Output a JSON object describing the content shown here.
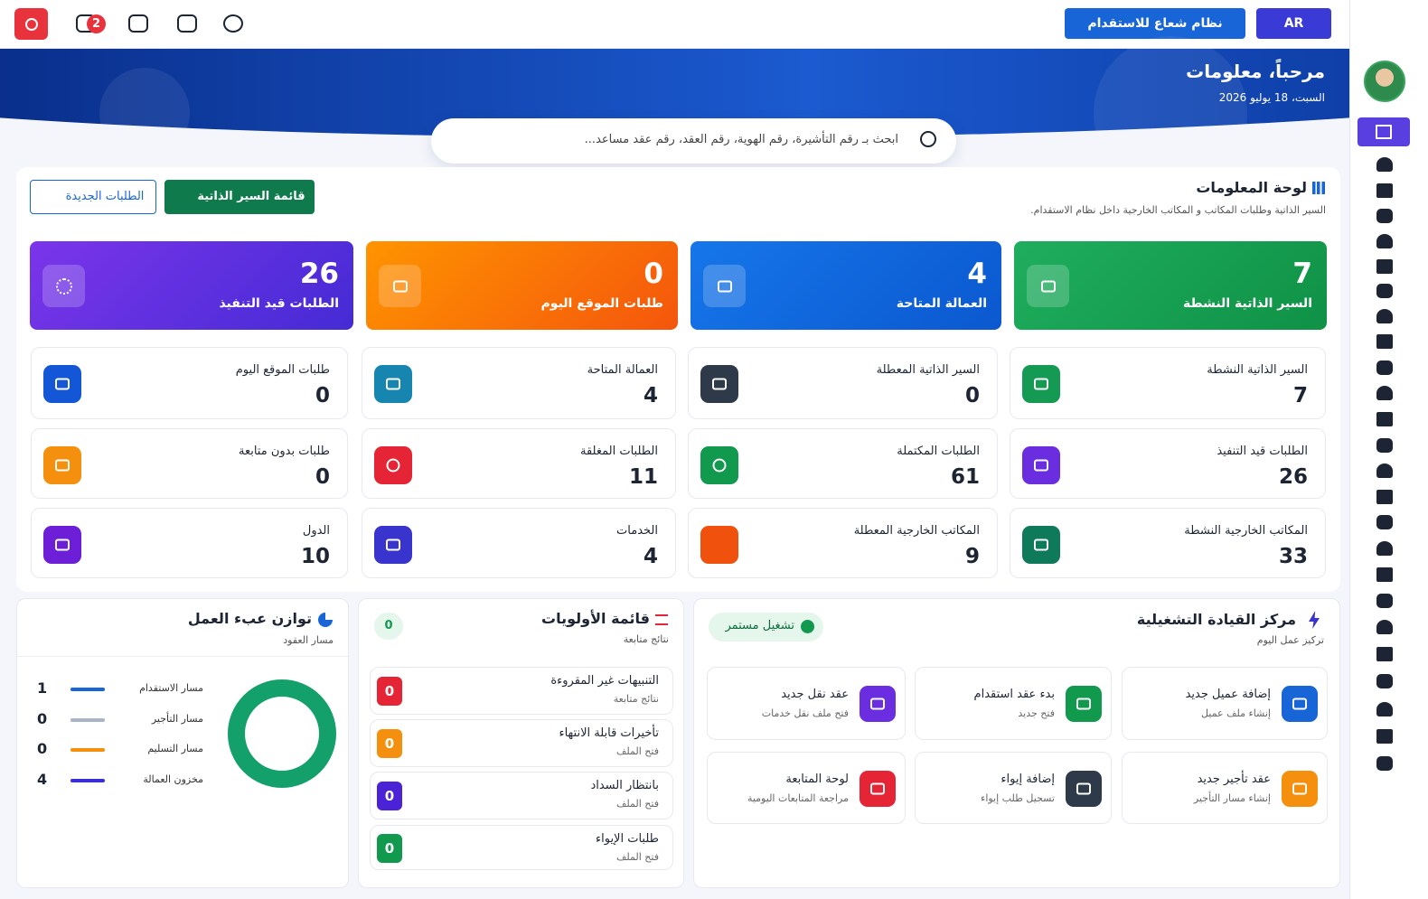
{
  "topbar": {
    "notification_count": 2,
    "system": "نظام شعاع للاستقدام",
    "language": "AR"
  },
  "hero": {
    "title": "مرحباً، معلومات",
    "date": "السبت، 18 يوليو 2026",
    "search_placeholder": "ابحث بـ رقم التأشيرة، رقم الهوية، رقم العقد، رقم عقد مساعد..."
  },
  "dashboard": {
    "title": "لوحة المعلومات",
    "subtitle": "السير الذاتية وطلبات المكاتب و المكاتب الخارجية داخل نظام الاستقدام.",
    "buttons": [
      "قائمة السير الذاتية",
      "الطلبات الجديدة"
    ],
    "highlights": [
      {
        "label": "السير الذاتية النشطة",
        "value": 7
      },
      {
        "label": "العمالة المتاحة",
        "value": 4
      },
      {
        "label": "طلبات الموقع اليوم",
        "value": 0
      },
      {
        "label": "الطلبات قيد التنفيذ",
        "value": 26
      }
    ],
    "stats": [
      {
        "label": "السير الذاتية النشطة",
        "value": 7
      },
      {
        "label": "السير الذاتية المعطلة",
        "value": 0
      },
      {
        "label": "العمالة المتاحة",
        "value": 4
      },
      {
        "label": "طلبات الموقع اليوم",
        "value": 0
      },
      {
        "label": "الطلبات قيد التنفيذ",
        "value": 26
      },
      {
        "label": "الطلبات المكتملة",
        "value": 61
      },
      {
        "label": "الطلبات المغلقة",
        "value": 11
      },
      {
        "label": "طلبات بدون متابعة",
        "value": 0
      },
      {
        "label": "المكاتب الخارجية النشطة",
        "value": 33
      },
      {
        "label": "المكاتب الخارجية المعطلة",
        "value": 9
      },
      {
        "label": "الخدمات",
        "value": 4
      },
      {
        "label": "الدول",
        "value": 10
      }
    ]
  },
  "workload": {
    "title": "توازن عبء العمل",
    "subtitle": "مسار العقود",
    "items": [
      {
        "label": "مسار الاستقدام",
        "value": 1
      },
      {
        "label": "مسار التأجير",
        "value": 0
      },
      {
        "label": "مسار التسليم",
        "value": 0
      },
      {
        "label": "مخزون العمالة",
        "value": 4
      }
    ]
  },
  "priorities": {
    "title": "قائمة الأولويات",
    "subtitle": "نتائج متابعة",
    "count": 0,
    "items": [
      {
        "title": "التنبيهات غير المقروءة",
        "subtitle": "نتائج متابعة",
        "value": 0
      },
      {
        "title": "تأخيرات قابلة الانتهاء",
        "subtitle": "فتح الملف",
        "value": 0
      },
      {
        "title": "بانتظار السداد",
        "subtitle": "فتح الملف",
        "value": 0
      },
      {
        "title": "طلبات الإيواء",
        "subtitle": "فتح الملف",
        "value": 0
      }
    ]
  },
  "command": {
    "title": "مركز القيادة التشغيلية",
    "subtitle": "تركيز عمل اليوم",
    "status": "تشغيل مستمر",
    "actions": [
      {
        "title": "إضافة عميل جديد",
        "subtitle": "إنشاء ملف عميل"
      },
      {
        "title": "بدء عقد استقدام",
        "subtitle": "فتح جديد"
      },
      {
        "title": "عقد نقل جديد",
        "subtitle": "فتح ملف نقل خدمات"
      },
      {
        "title": "عقد تأجير جديد",
        "subtitle": "إنشاء مسار التأجير"
      },
      {
        "title": "إضافة إيواء",
        "subtitle": "تسجيل طلب إيواء"
      },
      {
        "title": "لوحة المتابعة",
        "subtitle": "مراجعة المتابعات اليومية"
      }
    ]
  }
}
